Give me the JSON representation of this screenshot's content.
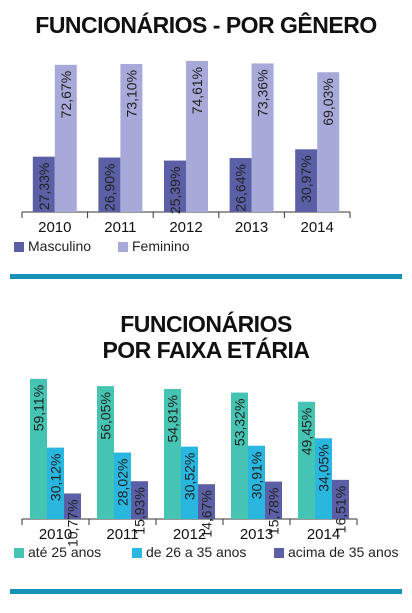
{
  "chart_data": [
    {
      "type": "bar",
      "title": "FUNCIONÁRIOS - POR GÊNERO",
      "categories": [
        "2010",
        "2011",
        "2012",
        "2013",
        "2014"
      ],
      "ylim": [
        0,
        80
      ],
      "series": [
        {
          "name": "Masculino",
          "color": "#5a5fa6",
          "values": [
            27.33,
            26.9,
            25.39,
            26.64,
            30.97
          ],
          "labels": [
            "27,33%",
            "26,90%",
            "25,39%",
            "26,64%",
            "30,97%"
          ]
        },
        {
          "name": "Feminino",
          "color": "#a7a9d8",
          "values": [
            72.67,
            73.1,
            74.61,
            73.36,
            69.03
          ],
          "labels": [
            "72,67%",
            "73,10%",
            "74,61%",
            "73,36%",
            "69,03%"
          ]
        }
      ],
      "legend_position": "bottom-left",
      "grid": false
    },
    {
      "type": "bar",
      "title": "FUNCIONÁRIOS POR FAIXA ETÁRIA",
      "title_lines": [
        "FUNCIONÁRIOS",
        "POR FAIXA ETÁRIA"
      ],
      "categories": [
        "2010",
        "2011",
        "2012",
        "2013",
        "2014"
      ],
      "ylim": [
        0,
        62
      ],
      "series": [
        {
          "name": "até 25 anos",
          "color": "#46c4b3",
          "values": [
            59.11,
            56.05,
            54.81,
            53.32,
            49.45
          ],
          "labels": [
            "59,11%",
            "56,05%",
            "54,81%",
            "53,32%",
            "49,45%"
          ]
        },
        {
          "name": "de 26 a 35 anos",
          "color": "#29b6df",
          "values": [
            30.12,
            28.02,
            30.52,
            30.91,
            34.05
          ],
          "labels": [
            "30,12%",
            "28,02%",
            "30,52%",
            "30,91%",
            "34,05%"
          ]
        },
        {
          "name": "acima de 35 anos",
          "color": "#5a5fa6",
          "values": [
            10.77,
            15.93,
            14.67,
            15.78,
            16.51
          ],
          "labels": [
            "10,77%",
            "15,93%",
            "14,67%",
            "15,78%",
            "16,51%"
          ]
        }
      ],
      "legend_position": "bottom",
      "grid": false
    }
  ],
  "accent_color": "#1592b5"
}
